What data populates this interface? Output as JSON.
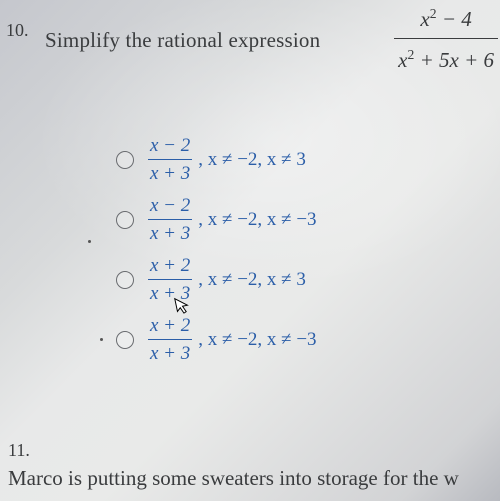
{
  "question10": {
    "number": "10.",
    "prompt": "Simplify the rational expression",
    "expression": {
      "numerator_html": "x<span class='sup'>2</span> &minus; 4",
      "denominator_html": "x<span class='sup'>2</span> + 5x + 6"
    },
    "options": [
      {
        "num": "x − 2",
        "den": "x + 3",
        "constraints": ", x ≠ −2, x ≠ 3"
      },
      {
        "num": "x − 2",
        "den": "x + 3",
        "constraints": ", x ≠ −2, x ≠ −3"
      },
      {
        "num": "x + 2",
        "den": "x + 3",
        "constraints": ", x ≠ −2, x ≠ 3"
      },
      {
        "num": "x + 2",
        "den": "x + 3",
        "constraints": ", x ≠ −2, x ≠ −3"
      }
    ]
  },
  "question11": {
    "number": "11.",
    "prompt_visible": "Marco is putting some sweaters into storage for the w"
  },
  "colors": {
    "text_primary": "#3a3c3e",
    "option_blue": "#2b5ea8",
    "radio_border": "#6a6c70"
  }
}
